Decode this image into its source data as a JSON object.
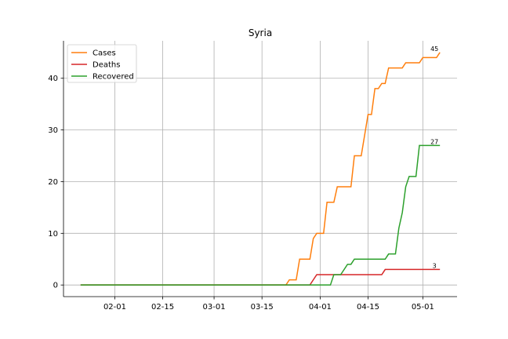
{
  "chart_data": {
    "type": "line",
    "title": "Syria",
    "xlabel": "",
    "ylabel": "",
    "x_ticks": [
      "02-01",
      "02-15",
      "03-01",
      "03-15",
      "04-01",
      "04-15",
      "05-01"
    ],
    "y_ticks": [
      0,
      10,
      20,
      30,
      40
    ],
    "xlim": [
      "2020-01-17",
      "2020-05-11"
    ],
    "ylim": [
      -2.25,
      47.25
    ],
    "grid": true,
    "legend_position": "top-left",
    "series": [
      {
        "name": "Cases",
        "color": "#ff7f0e",
        "end_label": "45",
        "points": [
          [
            "2020-01-22",
            0
          ],
          [
            "2020-03-22",
            0
          ],
          [
            "2020-03-23",
            1
          ],
          [
            "2020-03-25",
            1
          ],
          [
            "2020-03-26",
            5
          ],
          [
            "2020-03-29",
            5
          ],
          [
            "2020-03-30",
            9
          ],
          [
            "2020-03-31",
            10
          ],
          [
            "2020-04-02",
            10
          ],
          [
            "2020-04-03",
            16
          ],
          [
            "2020-04-05",
            16
          ],
          [
            "2020-04-06",
            19
          ],
          [
            "2020-04-10",
            19
          ],
          [
            "2020-04-11",
            25
          ],
          [
            "2020-04-13",
            25
          ],
          [
            "2020-04-15",
            33
          ],
          [
            "2020-04-16",
            33
          ],
          [
            "2020-04-17",
            38
          ],
          [
            "2020-04-18",
            38
          ],
          [
            "2020-04-19",
            39
          ],
          [
            "2020-04-20",
            39
          ],
          [
            "2020-04-21",
            42
          ],
          [
            "2020-04-25",
            42
          ],
          [
            "2020-04-26",
            43
          ],
          [
            "2020-04-30",
            43
          ],
          [
            "2020-05-01",
            44
          ],
          [
            "2020-05-05",
            44
          ],
          [
            "2020-05-06",
            45
          ]
        ]
      },
      {
        "name": "Deaths",
        "color": "#d62728",
        "end_label": "3",
        "points": [
          [
            "2020-01-22",
            0
          ],
          [
            "2020-03-29",
            0
          ],
          [
            "2020-03-31",
            2
          ],
          [
            "2020-04-19",
            2
          ],
          [
            "2020-04-20",
            3
          ],
          [
            "2020-05-06",
            3
          ]
        ]
      },
      {
        "name": "Recovered",
        "color": "#2ca02c",
        "end_label": "27",
        "points": [
          [
            "2020-01-22",
            0
          ],
          [
            "2020-04-04",
            0
          ],
          [
            "2020-04-05",
            2
          ],
          [
            "2020-04-07",
            2
          ],
          [
            "2020-04-09",
            4
          ],
          [
            "2020-04-10",
            4
          ],
          [
            "2020-04-11",
            5
          ],
          [
            "2020-04-20",
            5
          ],
          [
            "2020-04-21",
            6
          ],
          [
            "2020-04-23",
            6
          ],
          [
            "2020-04-24",
            11
          ],
          [
            "2020-04-25",
            14
          ],
          [
            "2020-04-26",
            19
          ],
          [
            "2020-04-27",
            21
          ],
          [
            "2020-04-29",
            21
          ],
          [
            "2020-04-30",
            27
          ],
          [
            "2020-05-06",
            27
          ]
        ]
      }
    ]
  }
}
